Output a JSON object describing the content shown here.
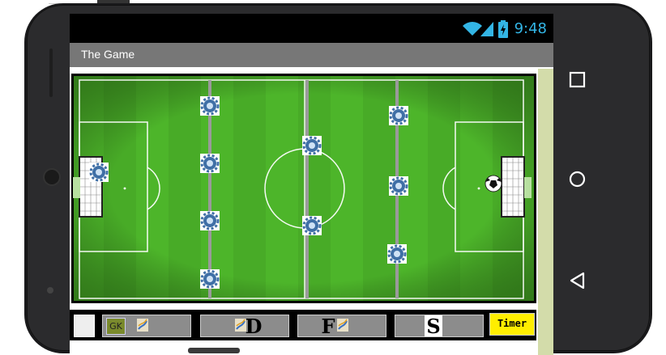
{
  "status_bar": {
    "time": "9:48",
    "icons": [
      "wifi-icon",
      "signal-icon",
      "battery-charging-icon"
    ],
    "accent_color": "#33b5e5"
  },
  "app_bar": {
    "title": "The Game",
    "background": "#777777"
  },
  "field": {
    "background": "#4fb12a",
    "line_color": "#ffffff",
    "rod_color": "#9a9a9a",
    "rods": 4,
    "players": [
      "gear-player-icon"
    ],
    "ball": "soccer-ball-icon",
    "goals": [
      "left-goal",
      "right-goal"
    ]
  },
  "controls": {
    "blank": "",
    "gk": "GK",
    "d": "D",
    "f": "F",
    "s": "S",
    "timer": "Timer",
    "button_color": "#8c8c8c",
    "timer_color": "#ffee00"
  },
  "nav": {
    "icons": [
      "recent-apps-icon",
      "home-icon",
      "back-icon"
    ]
  }
}
